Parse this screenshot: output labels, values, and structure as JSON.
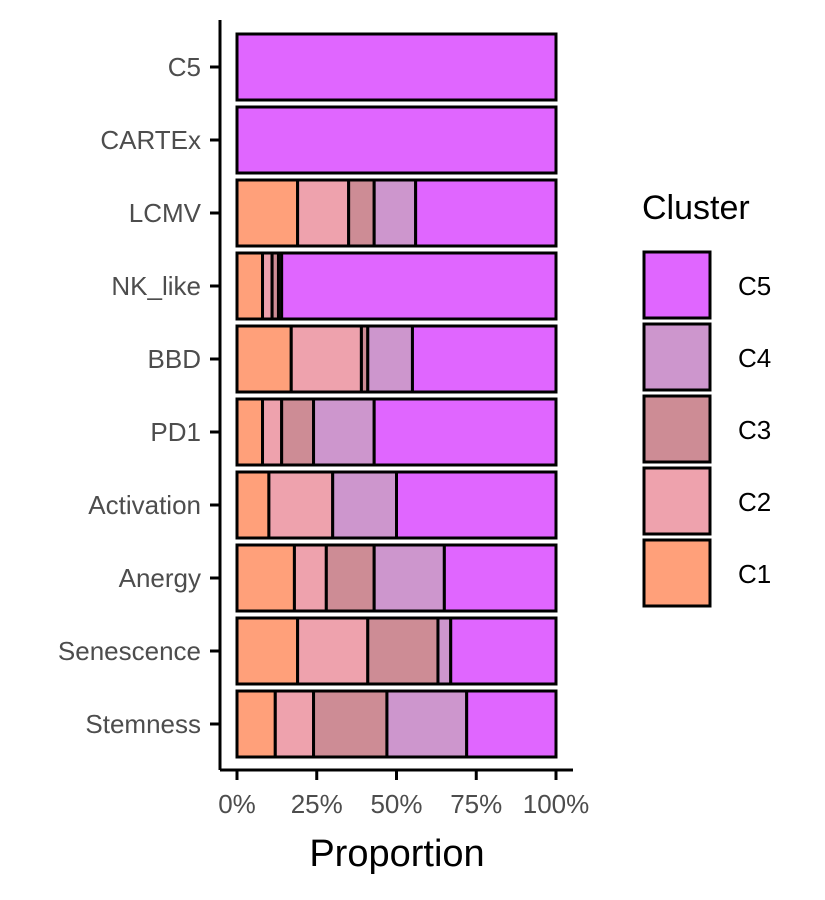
{
  "chart_data": {
    "type": "bar",
    "orientation": "horizontal",
    "stacked": true,
    "categories": [
      "C5",
      "CARTEx",
      "LCMV",
      "NK_like",
      "BBD",
      "PD1",
      "Activation",
      "Anergy",
      "Senescence",
      "Stemness"
    ],
    "series": [
      {
        "name": "C1",
        "color": "#FFA07A",
        "values": [
          0,
          0,
          0.19,
          0.08,
          0.17,
          0.08,
          0.1,
          0.18,
          0.19,
          0.12
        ]
      },
      {
        "name": "C2",
        "color": "#EEA2AD",
        "values": [
          0,
          0,
          0.16,
          0.03,
          0.22,
          0.06,
          0.2,
          0.1,
          0.22,
          0.12
        ]
      },
      {
        "name": "C3",
        "color": "#CD8C95",
        "values": [
          0,
          0,
          0.08,
          0.02,
          0.02,
          0.1,
          0,
          0.15,
          0.22,
          0.23
        ]
      },
      {
        "name": "C4",
        "color": "#CD96CD",
        "values": [
          0,
          0,
          0.13,
          0.01,
          0.14,
          0.19,
          0.2,
          0.22,
          0.04,
          0.25
        ]
      },
      {
        "name": "C5",
        "color": "#E066FF",
        "values": [
          1.0,
          1.0,
          0.44,
          0.86,
          0.45,
          0.57,
          0.5,
          0.35,
          0.33,
          0.28
        ]
      }
    ],
    "xlabel": "Proportion",
    "ylabel": "",
    "xlim": [
      0,
      1
    ],
    "x_ticks": [
      "0%",
      "25%",
      "50%",
      "75%",
      "100%"
    ],
    "legend": {
      "title": "Cluster",
      "position": "right",
      "entries": [
        "C5",
        "C4",
        "C3",
        "C2",
        "C1"
      ]
    },
    "grid": false
  }
}
